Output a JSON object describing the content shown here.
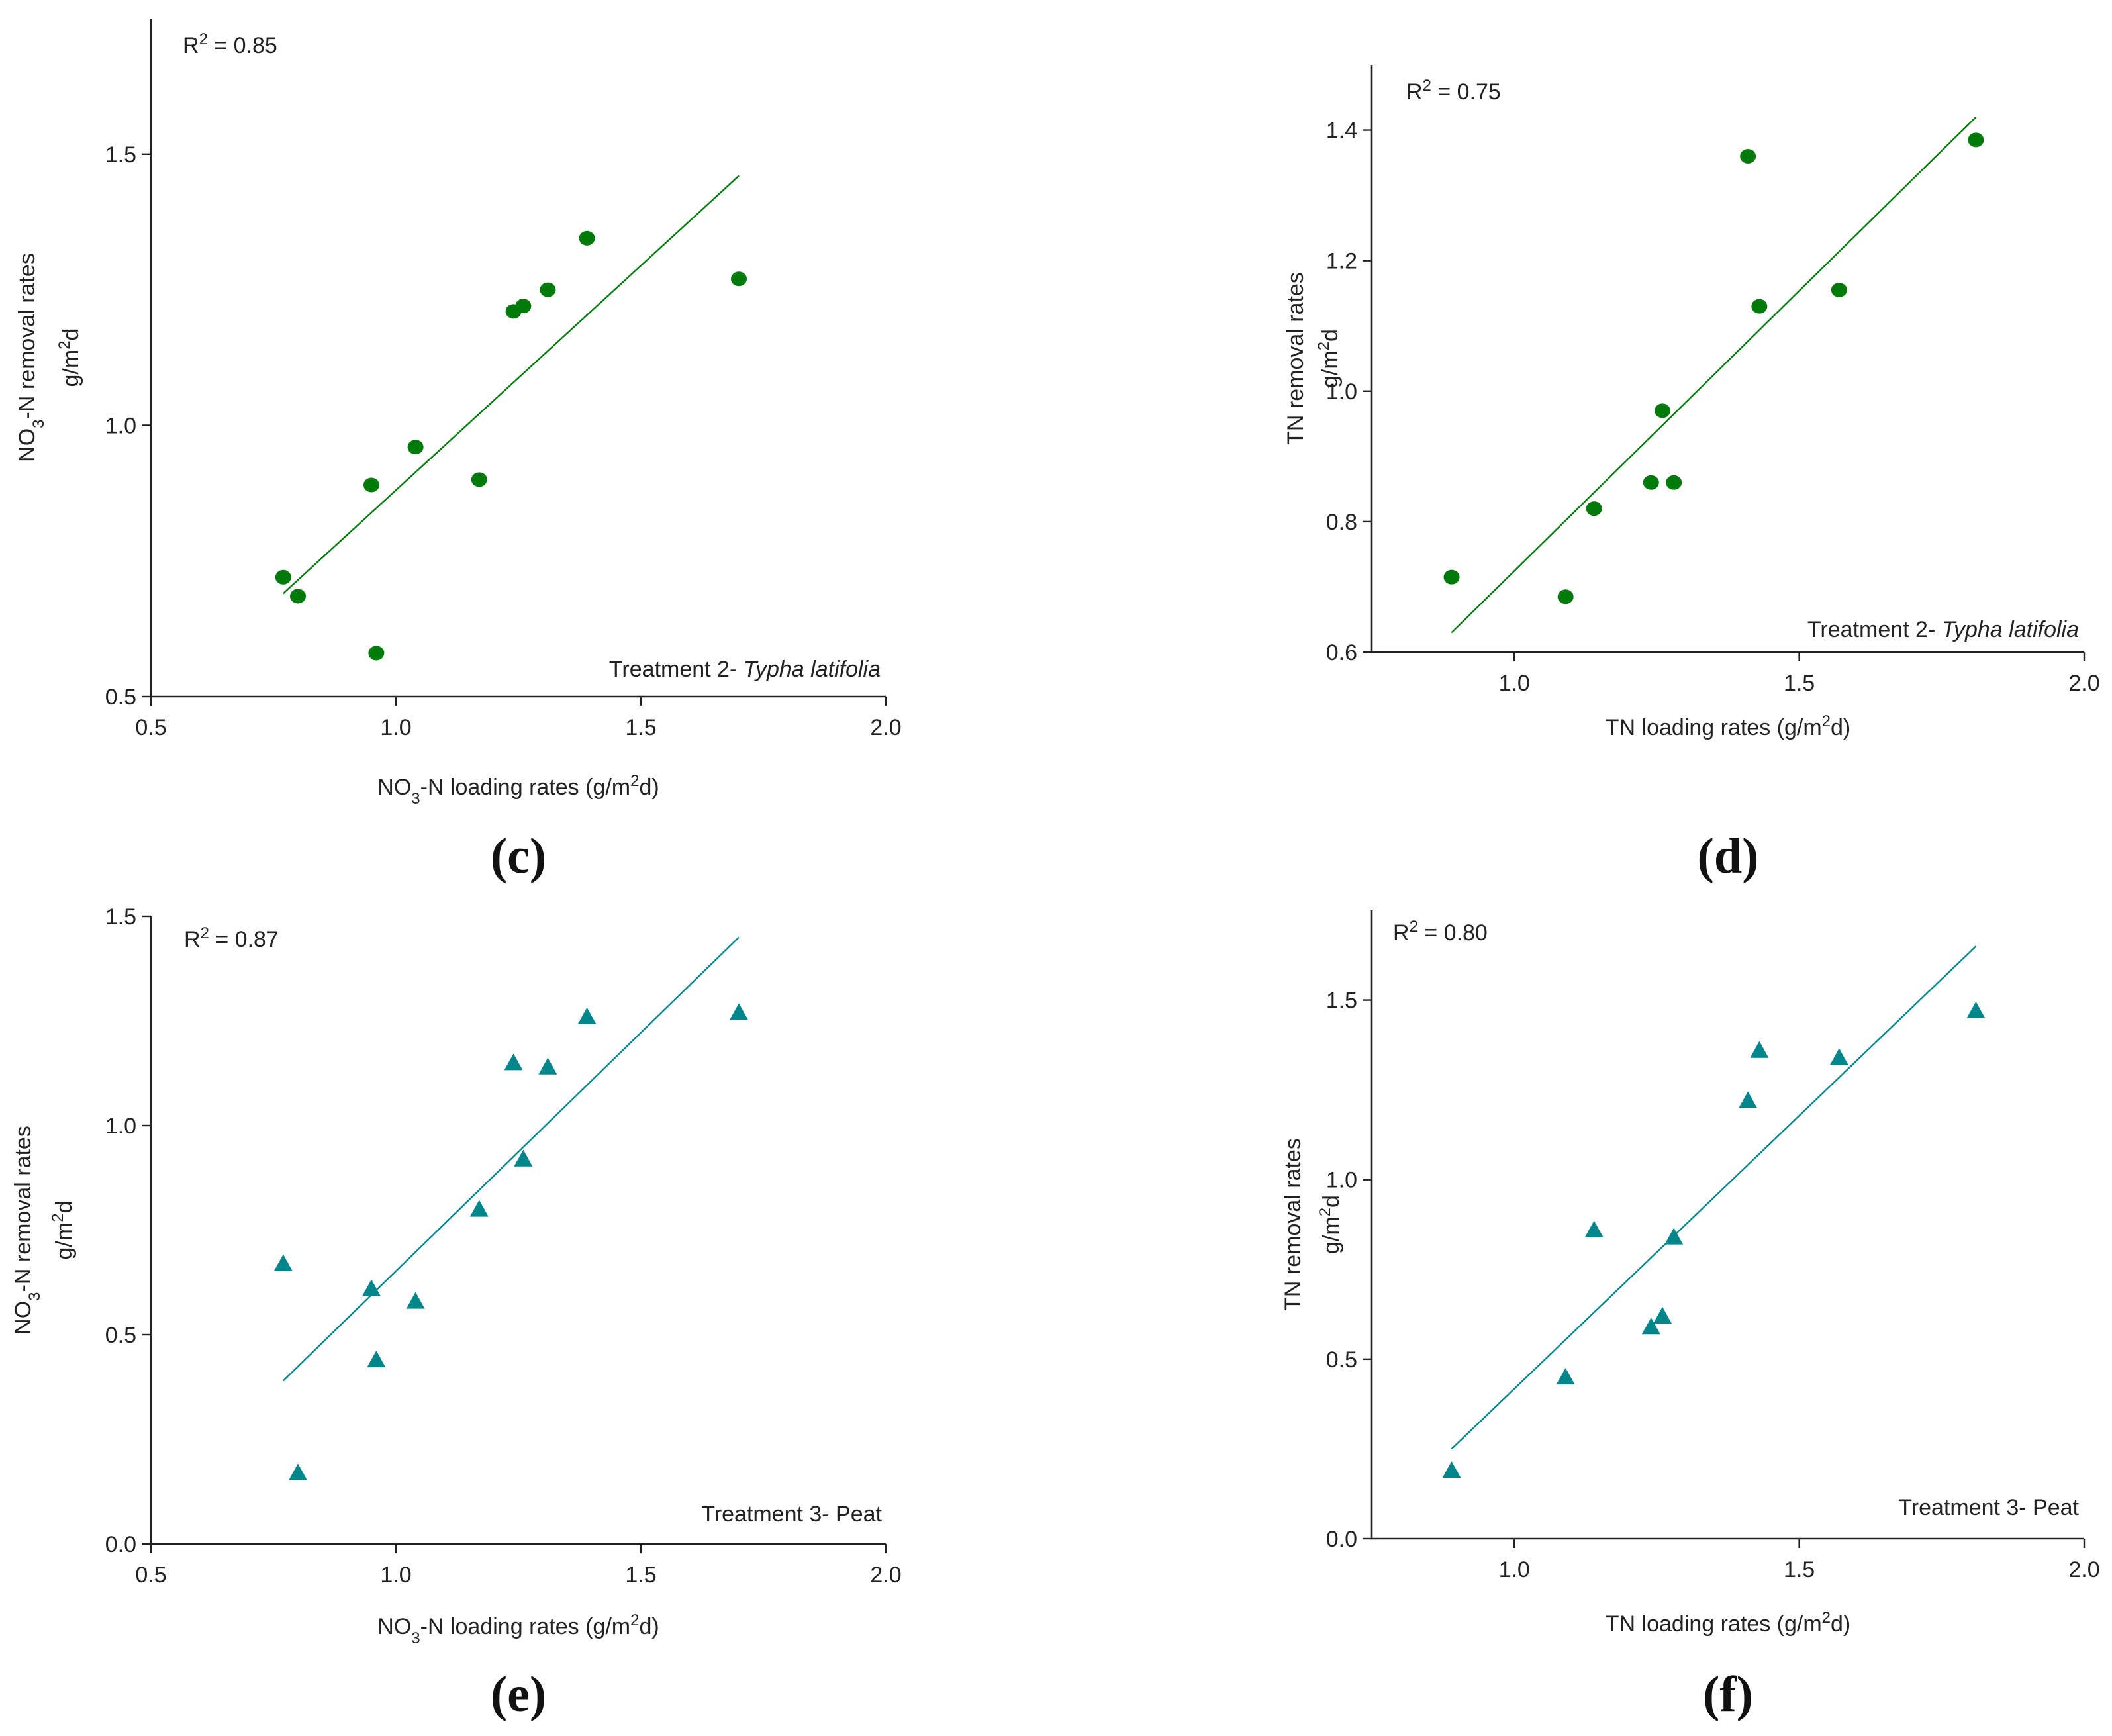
{
  "figure": {
    "colors": {
      "green": "#007a0b",
      "teal": "#00868b",
      "axis": "#222222"
    }
  },
  "chart_data": [
    {
      "id": "c",
      "type": "scatter",
      "panel_label": "(c)",
      "marker": "circle",
      "color": "#007a0b",
      "xlabel_parts": [
        "NO",
        "3",
        "-N loading rates (g/m",
        "2",
        "d)"
      ],
      "ylabel_line1_parts": [
        "NO",
        "3",
        "-N removal rates"
      ],
      "ylabel_line2_parts": [
        "g/m",
        "2",
        "d"
      ],
      "r2_parts": [
        "R",
        "2",
        " = 0.85"
      ],
      "treatment_parts": [
        "Treatment 2- ",
        "Typha latifolia"
      ],
      "xlim": [
        0.5,
        2.0
      ],
      "ylim": [
        0.5,
        1.75
      ],
      "xticks": [
        "0.5",
        "1.0",
        "1.5",
        "2.0"
      ],
      "xtick_values": [
        0.5,
        1.0,
        1.5,
        2.0
      ],
      "yticks": [
        "0.5",
        "1.0",
        "1.5"
      ],
      "ytick_values": [
        0.5,
        1.0,
        1.5
      ],
      "points": [
        [
          0.77,
          0.72
        ],
        [
          0.8,
          0.685
        ],
        [
          0.95,
          0.89
        ],
        [
          0.96,
          0.58
        ],
        [
          1.04,
          0.96
        ],
        [
          1.17,
          0.9
        ],
        [
          1.24,
          1.21
        ],
        [
          1.26,
          1.22
        ],
        [
          1.31,
          1.25
        ],
        [
          1.39,
          1.345
        ],
        [
          1.7,
          1.27
        ]
      ],
      "fit": [
        [
          0.77,
          0.69
        ],
        [
          1.7,
          1.46
        ]
      ]
    },
    {
      "id": "d",
      "type": "scatter",
      "panel_label": "(d)",
      "marker": "circle",
      "color": "#007a0b",
      "xlabel_parts": [
        "TN loading rates (g/m",
        "2",
        "d)"
      ],
      "ylabel_line1_parts": [
        "TN removal rates"
      ],
      "ylabel_line2_parts": [
        "g/m",
        "2",
        "d"
      ],
      "r2_parts": [
        "R",
        "2",
        " = 0.75"
      ],
      "treatment_parts": [
        "Treatment 2- ",
        "Typha latifolia"
      ],
      "xlim": [
        0.75,
        2.0
      ],
      "ylim": [
        0.6,
        1.5
      ],
      "xticks": [
        "1.0",
        "1.5",
        "2.0"
      ],
      "xtick_values": [
        1.0,
        1.5,
        2.0
      ],
      "yticks": [
        "0.6",
        "0.8",
        "1.0",
        "1.2",
        "1.4"
      ],
      "ytick_values": [
        0.6,
        0.8,
        1.0,
        1.2,
        1.4
      ],
      "points": [
        [
          0.89,
          0.715
        ],
        [
          1.09,
          0.685
        ],
        [
          1.14,
          0.82
        ],
        [
          1.24,
          0.86
        ],
        [
          1.26,
          0.97
        ],
        [
          1.28,
          0.86
        ],
        [
          1.41,
          1.36
        ],
        [
          1.43,
          1.13
        ],
        [
          1.57,
          1.155
        ],
        [
          1.81,
          1.385
        ]
      ],
      "fit": [
        [
          0.89,
          0.63
        ],
        [
          1.81,
          1.42
        ]
      ]
    },
    {
      "id": "e",
      "type": "scatter",
      "panel_label": "(e)",
      "marker": "triangle",
      "color": "#00868b",
      "xlabel_parts": [
        "NO",
        "3",
        "-N loading rates (g/m",
        "2",
        "d)"
      ],
      "ylabel_line1_parts": [
        "NO",
        "3",
        "-N removal rates"
      ],
      "ylabel_line2_parts": [
        "g/m",
        "2",
        "d"
      ],
      "r2_parts": [
        "R",
        "2",
        " = 0.87"
      ],
      "treatment_parts": [
        "Treatment 3- Peat",
        ""
      ],
      "xlim": [
        0.5,
        2.0
      ],
      "ylim": [
        0.0,
        1.5
      ],
      "xticks": [
        "0.5",
        "1.0",
        "1.5",
        "2.0"
      ],
      "xtick_values": [
        0.5,
        1.0,
        1.5,
        2.0
      ],
      "yticks": [
        "0.0",
        "0.5",
        "1.0",
        "1.5"
      ],
      "ytick_values": [
        0.0,
        0.5,
        1.0,
        1.5
      ],
      "points": [
        [
          0.77,
          0.67
        ],
        [
          0.8,
          0.17
        ],
        [
          0.95,
          0.61
        ],
        [
          0.96,
          0.44
        ],
        [
          1.04,
          0.58
        ],
        [
          1.17,
          0.8
        ],
        [
          1.24,
          1.15
        ],
        [
          1.26,
          0.92
        ],
        [
          1.31,
          1.14
        ],
        [
          1.39,
          1.26
        ],
        [
          1.7,
          1.27
        ]
      ],
      "fit": [
        [
          0.77,
          0.39
        ],
        [
          1.7,
          1.45
        ]
      ]
    },
    {
      "id": "f",
      "type": "scatter",
      "panel_label": "(f)",
      "marker": "triangle",
      "color": "#00868b",
      "xlabel_parts": [
        "TN loading rates (g/m",
        "2",
        "d)"
      ],
      "ylabel_line1_parts": [
        "TN removal rates"
      ],
      "ylabel_line2_parts": [
        "g/m",
        "2",
        "d"
      ],
      "r2_parts": [
        "R",
        "2",
        " = 0.80"
      ],
      "treatment_parts": [
        "Treatment 3- Peat",
        ""
      ],
      "xlim": [
        0.75,
        2.0
      ],
      "ylim": [
        0.0,
        1.75
      ],
      "xticks": [
        "1.0",
        "1.5",
        "2.0"
      ],
      "xtick_values": [
        1.0,
        1.5,
        2.0
      ],
      "yticks": [
        "0.0",
        "0.5",
        "1.0",
        "1.5"
      ],
      "ytick_values": [
        0.0,
        0.5,
        1.0,
        1.5
      ],
      "points": [
        [
          0.89,
          0.19
        ],
        [
          1.09,
          0.45
        ],
        [
          1.14,
          0.86
        ],
        [
          1.24,
          0.59
        ],
        [
          1.26,
          0.62
        ],
        [
          1.28,
          0.84
        ],
        [
          1.41,
          1.22
        ],
        [
          1.43,
          1.36
        ],
        [
          1.57,
          1.34
        ],
        [
          1.81,
          1.47
        ]
      ],
      "fit": [
        [
          0.89,
          0.25
        ],
        [
          1.81,
          1.65
        ]
      ]
    }
  ]
}
